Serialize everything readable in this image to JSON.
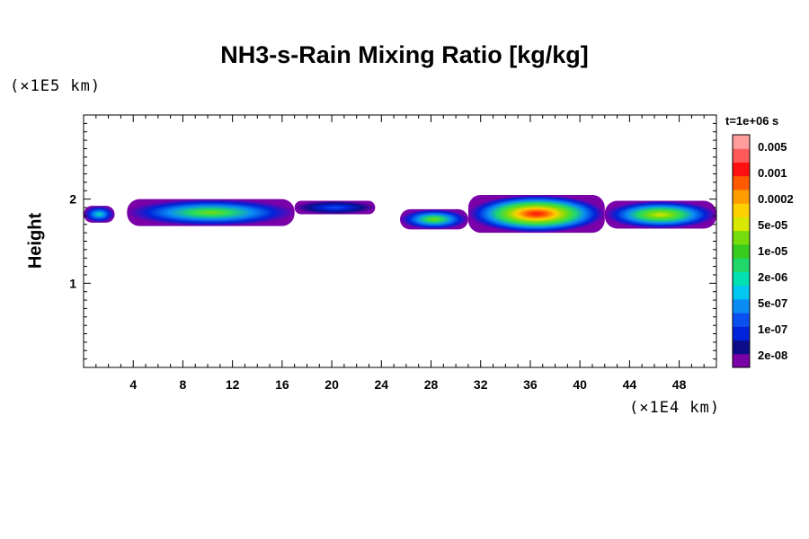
{
  "chart_data": {
    "type": "heatmap",
    "title": "NH3-s-Rain Mixing Ratio [kg/kg]",
    "ylabel": "Height",
    "x_unit": "(×1E4 km)",
    "y_unit": "(×1E5 km)",
    "time_label": "t=1e+06 s",
    "xlim": [
      0,
      51
    ],
    "ylim": [
      0,
      3
    ],
    "x_ticks": [
      4,
      8,
      12,
      16,
      20,
      24,
      28,
      32,
      36,
      40,
      44,
      48
    ],
    "y_ticks": [
      1,
      2
    ],
    "colorbar": {
      "colors": [
        "#7a00a8",
        "#0d0d8a",
        "#0022d8",
        "#0a4ff0",
        "#0a8cf5",
        "#00c8f0",
        "#00e0b0",
        "#20d86a",
        "#37cc1e",
        "#76dd0c",
        "#d8e800",
        "#ffd000",
        "#ff9c00",
        "#ff5a00",
        "#ff1010",
        "#ff5a5a",
        "#ff9c9c"
      ],
      "tick_labels": [
        "0.005",
        "0.001",
        "0.0002",
        "5e-05",
        "1e-05",
        "2e-06",
        "5e-07",
        "1e-07",
        "2e-08"
      ]
    },
    "cloud_layer": [
      {
        "x": [
          0,
          2.5
        ],
        "bottom": 1.72,
        "top": 1.92,
        "peak": "cyan"
      },
      {
        "x": [
          3.5,
          17
        ],
        "bottom": 1.68,
        "top": 2.0,
        "peak": "green"
      },
      {
        "x": [
          17,
          23.5
        ],
        "bottom": 1.82,
        "top": 1.98,
        "peak": "blue"
      },
      {
        "x": [
          25.5,
          31
        ],
        "bottom": 1.64,
        "top": 1.88,
        "peak": "green"
      },
      {
        "x": [
          31,
          42
        ],
        "bottom": 1.6,
        "top": 2.05,
        "peak": "red"
      },
      {
        "x": [
          42,
          51
        ],
        "bottom": 1.65,
        "top": 1.98,
        "peak": "yellow"
      }
    ]
  }
}
